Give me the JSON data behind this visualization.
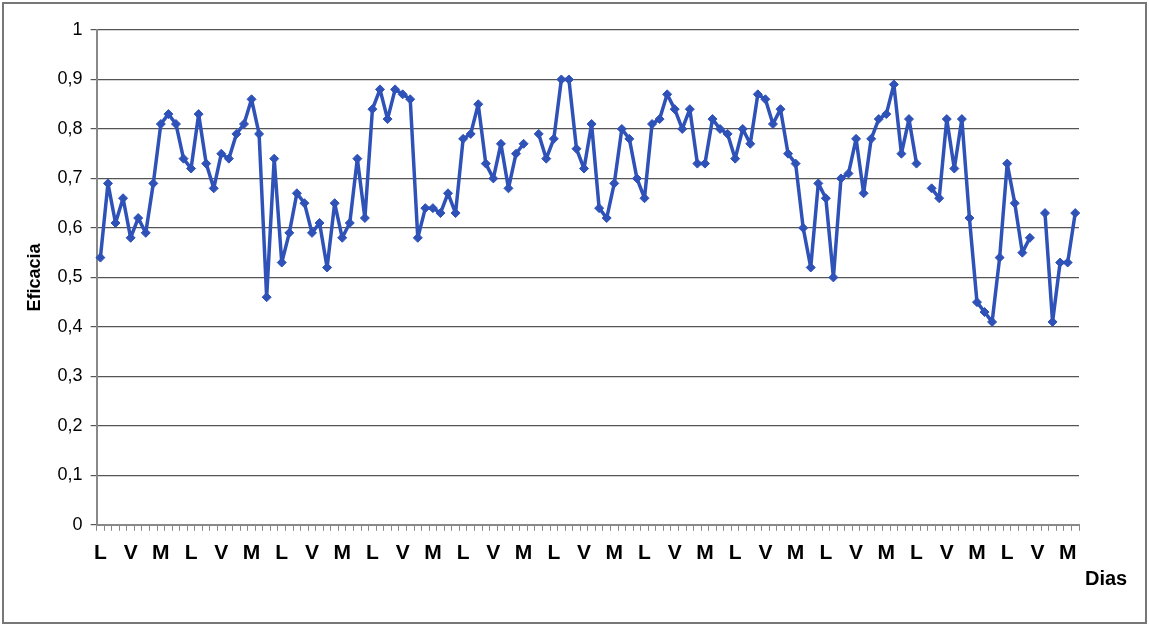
{
  "chart_data": {
    "type": "line",
    "xlabel": "Dias",
    "ylabel": "Eficacia",
    "categories": [
      "L",
      null,
      null,
      null,
      "V",
      null,
      null,
      null,
      "M",
      null,
      null,
      null,
      "L",
      null,
      null,
      null,
      "V",
      null,
      null,
      null,
      "M",
      null,
      null,
      null,
      "L",
      null,
      null,
      null,
      "V",
      null,
      null,
      null,
      "M",
      null,
      null,
      null,
      "L",
      null,
      null,
      null,
      "V",
      null,
      null,
      null,
      "M",
      null,
      null,
      null,
      "L",
      null,
      null,
      null,
      "V",
      null,
      null,
      null,
      "M",
      null,
      null,
      null,
      "L",
      null,
      null,
      null,
      "V",
      null,
      null,
      null,
      "M",
      null,
      null,
      null,
      "L",
      null,
      null,
      null,
      "V",
      null,
      null,
      null,
      "M",
      null,
      null,
      null,
      "L",
      null,
      null,
      null,
      "V",
      null,
      null,
      null,
      "M",
      null,
      null,
      null,
      "L",
      null,
      null,
      null,
      "V",
      null,
      null,
      null,
      "M",
      null,
      null,
      null,
      "L",
      null,
      null,
      null,
      "V",
      null,
      null,
      null,
      "M",
      null,
      null,
      null,
      "L",
      null,
      null,
      null,
      "V",
      null,
      null,
      null,
      "M",
      null
    ],
    "series": [
      {
        "color": "#2f52b8",
        "values": [
          0.54,
          0.69,
          0.61,
          0.66,
          0.58,
          0.62,
          0.59,
          0.69,
          0.81,
          0.83,
          0.81,
          0.74,
          0.72,
          0.83,
          0.73,
          0.68,
          0.75,
          0.74,
          0.79,
          0.81,
          0.86,
          0.79,
          0.46,
          0.74,
          0.53,
          0.59,
          0.67,
          0.65,
          0.59,
          0.61,
          0.52,
          0.65,
          0.58,
          0.61,
          0.74,
          0.62,
          0.84,
          0.88,
          0.82,
          0.88,
          0.87,
          0.86,
          0.58,
          0.64,
          0.64,
          0.63,
          0.67,
          0.63,
          0.78,
          0.79,
          0.85,
          0.73,
          0.7,
          0.77,
          0.68,
          0.75,
          0.77,
          null,
          0.79,
          0.74,
          0.78,
          0.9,
          0.9,
          0.76,
          0.72,
          0.81,
          0.64,
          0.62,
          0.69,
          0.8,
          0.78,
          0.7,
          0.66,
          0.81,
          0.82,
          0.87,
          0.84,
          0.8,
          0.84,
          0.73,
          0.73,
          0.82,
          0.8,
          0.79,
          0.74,
          0.8,
          0.77,
          0.87,
          0.86,
          0.81,
          0.84,
          0.75,
          0.73,
          0.6,
          0.52,
          0.69,
          0.66,
          0.5,
          0.7,
          0.71,
          0.78,
          0.67,
          0.78,
          0.82,
          0.83,
          0.89,
          0.75,
          0.82,
          0.73,
          null,
          0.68,
          0.66,
          0.82,
          0.72,
          0.82,
          0.62,
          0.45,
          0.43,
          0.41,
          0.54,
          0.73,
          0.65,
          0.55,
          0.58,
          null,
          0.63,
          0.41,
          0.53,
          0.53,
          0.63
        ]
      }
    ],
    "ylim": [
      0,
      1
    ],
    "yticks": [
      0,
      {
        "value": 0.1,
        "label": "0,1"
      },
      {
        "value": 0.2,
        "label": "0,2"
      },
      {
        "value": 0.3,
        "label": "0,3"
      },
      {
        "value": 0.4,
        "label": "0,4"
      },
      {
        "value": 0.5,
        "label": "0,5"
      },
      {
        "value": 0.6,
        "label": "0,6"
      },
      {
        "value": 0.7,
        "label": "0,7"
      },
      {
        "value": 0.8,
        "label": "0,8"
      },
      {
        "value": 0.9,
        "label": "0,9"
      },
      1
    ],
    "grid": "y",
    "legend": false,
    "marker": "diamond",
    "line_style": "solid"
  }
}
